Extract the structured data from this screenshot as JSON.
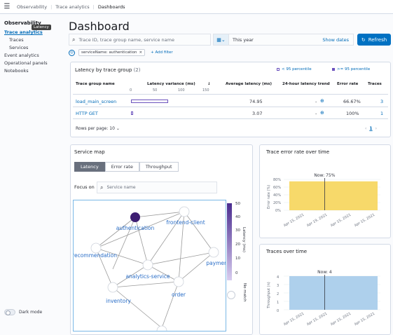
{
  "topbar": {
    "menu_icon": "hamburger-icon",
    "breadcrumbs": [
      "Observability",
      "Trace analytics",
      "Dashboards"
    ]
  },
  "sidenav": {
    "title": "Observability",
    "items": [
      {
        "label": "Trace analytics",
        "active": true
      },
      {
        "label": "Traces"
      },
      {
        "label": "Services"
      },
      {
        "label": "Event analytics"
      },
      {
        "label": "Operational panels"
      },
      {
        "label": "Notebooks"
      }
    ],
    "tooltip": "Latency",
    "dark_mode_label": "Dark mode"
  },
  "page": {
    "title": "Dashboard"
  },
  "search": {
    "placeholder": "Trace ID, trace group name, service name"
  },
  "datepicker": {
    "range": "This year",
    "show_dates": "Show dates"
  },
  "refresh_label": "Refresh",
  "filters": {
    "pill": "serviceName: authentication",
    "add_label": "+ Add filter"
  },
  "latency_panel": {
    "title": "Latency by trace group",
    "count": "(2)",
    "legend_low": "< 95 percentile",
    "legend_high": ">= 95 percentile",
    "columns": [
      "Trace group name",
      "Latency variance (ms)",
      "Average latency (ms)",
      "24-hour latency trend",
      "Error rate",
      "Traces"
    ],
    "variance_ticks": [
      "0",
      "50",
      "100",
      "150"
    ],
    "rows": [
      {
        "name": "load_main_screen",
        "avg": "74.95",
        "trend": "-",
        "error": "66.67%",
        "traces": "3",
        "var_low": 0,
        "var_high": 75
      },
      {
        "name": "HTTP GET",
        "avg": "3.07",
        "trend": "-",
        "error": "100%",
        "traces": "1",
        "var_low": 0,
        "var_high": 4
      }
    ],
    "rows_per_page": "Rows per page: 10",
    "page": "1"
  },
  "service_map": {
    "title": "Service map",
    "tabs": [
      "Latency",
      "Error rate",
      "Throughput"
    ],
    "active_tab": "Latency",
    "focus_label": "Focus on",
    "focus_placeholder": "Service name",
    "nodes": [
      "authentication",
      "frontend-client",
      "recommendation",
      "payment",
      "analytics-service",
      "order",
      "inventory"
    ],
    "scale_ticks": [
      "50",
      "40",
      "30",
      "20",
      "10",
      "0"
    ],
    "scale_label": "Latency (ms)",
    "no_match": "No match"
  },
  "error_chart": {
    "title": "Trace error rate over time",
    "annotation": "Now: 75%",
    "ylabel": "Error rate (%)",
    "yticks": [
      "80%",
      "60%",
      "40%",
      "20%",
      "0%"
    ],
    "xticks": [
      "Apr 15, 2021",
      "Apr 19, 2021",
      "Apr 15, 2021",
      "Apr 15, 2021"
    ]
  },
  "traces_chart": {
    "title": "Traces over time",
    "annotation": "Now: 4",
    "ylabel": "Throughput (n)",
    "yticks": [
      "4",
      "3",
      "2",
      "1",
      "0"
    ],
    "xticks": [
      "Apr 15, 2021",
      "Apr 15, 2021",
      "Apr 15, 2021",
      "Apr 15, 2021"
    ]
  },
  "chart_data": [
    {
      "type": "bar",
      "title": "Trace error rate over time",
      "ylabel": "Error rate (%)",
      "ylim": [
        0,
        80
      ],
      "values": [
        75
      ]
    },
    {
      "type": "bar",
      "title": "Traces over time",
      "ylabel": "Throughput (n)",
      "ylim": [
        0,
        4
      ],
      "values": [
        4
      ]
    }
  ],
  "colors": {
    "accent": "#006bb8",
    "primary_button": "#0071c2",
    "error_bar": "#f7d96a",
    "traces_bar": "#aed0ec",
    "node_dark": "#3e1e72"
  }
}
